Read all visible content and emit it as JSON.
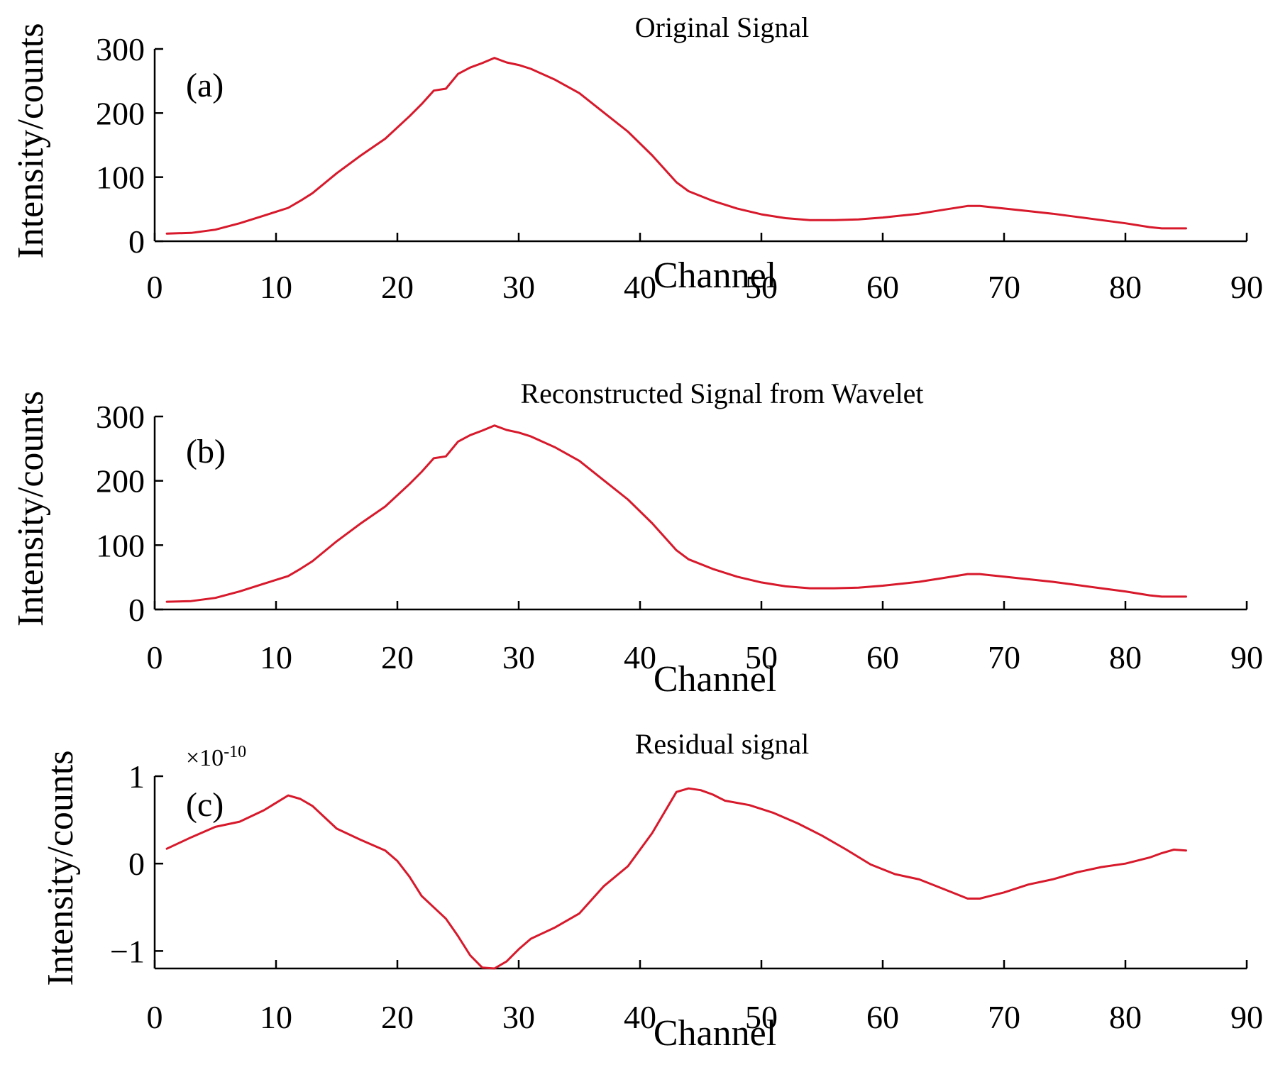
{
  "figure": {
    "line_color": "#d7192b"
  },
  "chart_data": [
    {
      "type": "line",
      "title": "Original Signal",
      "panel_label": "(a)",
      "xlabel": "Channel",
      "ylabel": "Intensity/counts",
      "xlim": [
        0,
        90
      ],
      "ylim": [
        0,
        300
      ],
      "xticks": [
        0,
        10,
        20,
        30,
        40,
        50,
        60,
        70,
        80,
        90
      ],
      "yticks": [
        0,
        100,
        200,
        300
      ],
      "grid": false,
      "series": [
        {
          "x": [
            1,
            3,
            5,
            7,
            9,
            11,
            12,
            13,
            15,
            17,
            19,
            21,
            22,
            23,
            24,
            25,
            26,
            27,
            28,
            29,
            30,
            31,
            33,
            35,
            37,
            39,
            41,
            43,
            44,
            46,
            48,
            50,
            52,
            54,
            56,
            58,
            60,
            63,
            65,
            67,
            68,
            70,
            72,
            74,
            76,
            78,
            80,
            82,
            83,
            85
          ],
          "y": [
            12,
            13,
            18,
            28,
            40,
            52,
            63,
            75,
            106,
            134,
            160,
            195,
            214,
            235,
            238,
            261,
            271,
            278,
            286,
            279,
            275,
            269,
            252,
            231,
            201,
            171,
            134,
            92,
            78,
            63,
            51,
            42,
            36,
            33,
            33,
            34,
            37,
            43,
            49,
            55,
            55,
            51,
            47,
            43,
            38,
            33,
            28,
            22,
            20,
            20
          ]
        }
      ]
    },
    {
      "type": "line",
      "title": "Reconstructed Signal from Wavelet",
      "panel_label": "(b)",
      "xlabel": "Channel",
      "ylabel": "Intensity/counts",
      "xlim": [
        0,
        90
      ],
      "ylim": [
        0,
        300
      ],
      "xticks": [
        0,
        10,
        20,
        30,
        40,
        50,
        60,
        70,
        80,
        90
      ],
      "yticks": [
        0,
        100,
        200,
        300
      ],
      "grid": false,
      "series": [
        {
          "x": [
            1,
            3,
            5,
            7,
            9,
            11,
            12,
            13,
            15,
            17,
            19,
            21,
            22,
            23,
            24,
            25,
            26,
            27,
            28,
            29,
            30,
            31,
            33,
            35,
            37,
            39,
            41,
            43,
            44,
            46,
            48,
            50,
            52,
            54,
            56,
            58,
            60,
            63,
            65,
            67,
            68,
            70,
            72,
            74,
            76,
            78,
            80,
            82,
            83,
            85
          ],
          "y": [
            12,
            13,
            18,
            28,
            40,
            52,
            63,
            75,
            106,
            134,
            160,
            195,
            214,
            235,
            238,
            261,
            271,
            278,
            286,
            279,
            275,
            269,
            252,
            231,
            201,
            171,
            134,
            92,
            78,
            63,
            51,
            42,
            36,
            33,
            33,
            34,
            37,
            43,
            49,
            55,
            55,
            51,
            47,
            43,
            38,
            33,
            28,
            22,
            20,
            20
          ]
        }
      ]
    },
    {
      "type": "line",
      "title": "Residual signal",
      "panel_label": "(c)",
      "xlabel": "Channel",
      "ylabel": "Intensity/counts",
      "multiplier_base": "×10",
      "multiplier_exponent": "-10",
      "xlim": [
        0,
        90
      ],
      "ylim": [
        -1.2,
        1
      ],
      "xticks": [
        0,
        10,
        20,
        30,
        40,
        50,
        60,
        70,
        80,
        90
      ],
      "yticks": [
        -1,
        0,
        1
      ],
      "ytick_labels": [
        "−1",
        "0",
        "1"
      ],
      "grid": false,
      "series": [
        {
          "x": [
            1,
            3,
            5,
            7,
            9,
            11,
            12,
            13,
            14,
            15,
            17,
            19,
            20,
            21,
            22,
            23,
            24,
            25,
            26,
            27,
            28,
            29,
            30,
            31,
            33,
            35,
            37,
            39,
            41,
            43,
            44,
            45,
            46,
            47,
            49,
            51,
            53,
            55,
            57,
            59,
            61,
            63,
            65,
            67,
            68,
            70,
            72,
            74,
            76,
            78,
            80,
            82,
            83,
            84,
            85
          ],
          "y": [
            0.17,
            0.3,
            0.42,
            0.48,
            0.61,
            0.78,
            0.74,
            0.66,
            0.53,
            0.4,
            0.27,
            0.15,
            0.03,
            -0.15,
            -0.37,
            -0.5,
            -0.63,
            -0.83,
            -1.05,
            -1.19,
            -1.2,
            -1.12,
            -0.98,
            -0.86,
            -0.73,
            -0.57,
            -0.26,
            -0.03,
            0.35,
            0.82,
            0.86,
            0.84,
            0.79,
            0.72,
            0.67,
            0.58,
            0.46,
            0.32,
            0.16,
            -0.01,
            -0.12,
            -0.18,
            -0.29,
            -0.4,
            -0.4,
            -0.33,
            -0.24,
            -0.18,
            -0.1,
            -0.04,
            0,
            0.07,
            0.12,
            0.16,
            0.15
          ]
        }
      ]
    }
  ]
}
